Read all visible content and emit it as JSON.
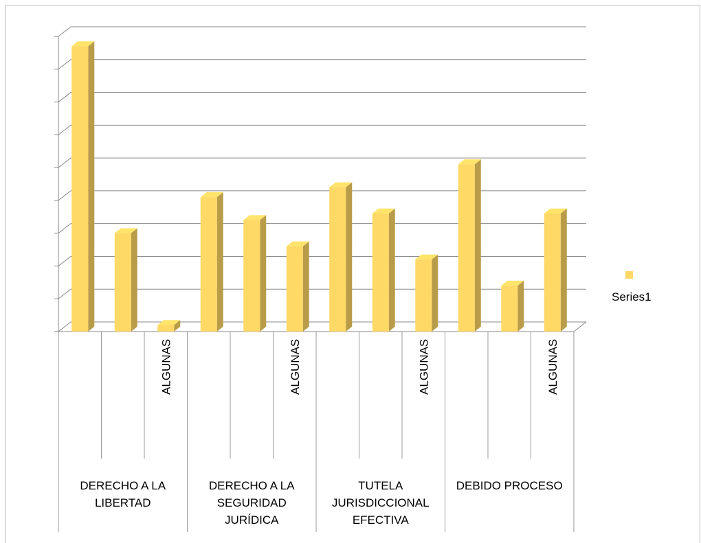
{
  "chart_data": {
    "type": "bar",
    "categories": [
      null,
      null,
      "ALGUNAS",
      null,
      null,
      "ALGUNAS",
      null,
      null,
      "ALGUNAS",
      null,
      null,
      "ALGUNAS"
    ],
    "groups": [
      "DERECHO A LA LIBERTAD",
      "DERECHO A LA SEGURIDAD JURÍDICA",
      "TUTELA JURISDICCIONAL EFECTIVA",
      "DEBIDO PROCESO"
    ],
    "series": [
      {
        "name": "Series1",
        "color": "#ffd966",
        "values": [
          8.7,
          3.0,
          0.2,
          4.1,
          3.4,
          2.6,
          4.4,
          3.6,
          2.2,
          5.1,
          1.4,
          3.6
        ]
      }
    ],
    "ylim": [
      0,
      9
    ],
    "yticks": [
      0,
      1,
      2,
      3,
      4,
      5,
      6,
      7,
      8,
      9
    ],
    "grid": true
  }
}
